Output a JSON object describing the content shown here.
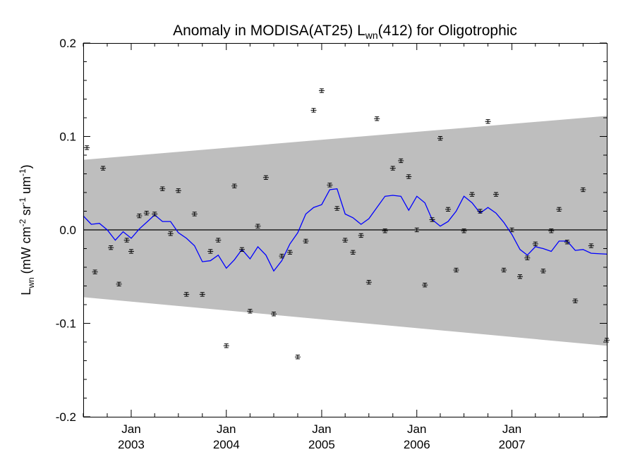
{
  "chart_data": {
    "type": "line",
    "title": {
      "prefix": "Anomaly in MODISA(AT25) L",
      "subscript": "wn",
      "suffix": "(412) for Oligotrophic"
    },
    "ylabel": {
      "main": "L",
      "sub": "wn",
      "units": [
        {
          "t": " (mW cm",
          "s": ""
        },
        {
          "t": "-2",
          "s": "sup"
        },
        {
          "t": " sr",
          "s": ""
        },
        {
          "t": "-1",
          "s": "sup"
        },
        {
          "t": " um",
          "s": ""
        },
        {
          "t": "-1",
          "s": "sup"
        },
        {
          "t": ")",
          "s": ""
        }
      ]
    },
    "xlim": [
      "2002-07-01",
      "2007-12-31"
    ],
    "ylim": [
      -0.2,
      0.2
    ],
    "x_ticks": [
      {
        "date": "2003-01-01",
        "month": "Jan",
        "year": "2003"
      },
      {
        "date": "2004-01-01",
        "month": "Jan",
        "year": "2004"
      },
      {
        "date": "2005-01-01",
        "month": "Jan",
        "year": "2005"
      },
      {
        "date": "2006-01-01",
        "month": "Jan",
        "year": "2006"
      },
      {
        "date": "2007-01-01",
        "month": "Jan",
        "year": "2007"
      }
    ],
    "y_ticks": [
      {
        "value": 0.2,
        "label": "0.2"
      },
      {
        "value": 0.1,
        "label": "0.1"
      },
      {
        "value": 0.0,
        "label": "0.0"
      },
      {
        "value": -0.1,
        "label": "-0.1"
      },
      {
        "value": -0.2,
        "label": "-0.2"
      }
    ],
    "grey_band": {
      "start": {
        "date": "2002-07-01",
        "upper": 0.075,
        "lower": -0.072
      },
      "end": {
        "date": "2007-12-31",
        "upper": 0.122,
        "lower": -0.124
      }
    },
    "zero_line": 0.0,
    "series": [
      {
        "kind": "points_with_error_bars",
        "color": "#000000",
        "error": 0.002,
        "points": [
          {
            "x": "2002-07-15",
            "y": 0.088
          },
          {
            "x": "2002-08-15",
            "y": -0.045
          },
          {
            "x": "2002-09-15",
            "y": 0.066
          },
          {
            "x": "2002-10-15",
            "y": -0.019
          },
          {
            "x": "2002-11-15",
            "y": -0.058
          },
          {
            "x": "2002-12-15",
            "y": -0.011
          },
          {
            "x": "2003-01-01",
            "y": -0.023
          },
          {
            "x": "2003-02-01",
            "y": 0.015
          },
          {
            "x": "2003-03-01",
            "y": 0.018
          },
          {
            "x": "2003-04-01",
            "y": 0.017
          },
          {
            "x": "2003-05-01",
            "y": 0.044
          },
          {
            "x": "2003-06-01",
            "y": -0.004
          },
          {
            "x": "2003-07-01",
            "y": 0.042
          },
          {
            "x": "2003-08-01",
            "y": -0.069
          },
          {
            "x": "2003-09-01",
            "y": 0.017
          },
          {
            "x": "2003-10-01",
            "y": -0.069
          },
          {
            "x": "2003-11-01",
            "y": -0.023
          },
          {
            "x": "2003-12-01",
            "y": -0.011
          },
          {
            "x": "2004-01-01",
            "y": -0.124
          },
          {
            "x": "2004-02-01",
            "y": 0.047
          },
          {
            "x": "2004-03-01",
            "y": -0.021
          },
          {
            "x": "2004-04-01",
            "y": -0.087
          },
          {
            "x": "2004-05-01",
            "y": 0.004
          },
          {
            "x": "2004-06-01",
            "y": 0.056
          },
          {
            "x": "2004-07-01",
            "y": -0.09
          },
          {
            "x": "2004-08-01",
            "y": -0.028
          },
          {
            "x": "2004-09-01",
            "y": -0.024
          },
          {
            "x": "2004-10-01",
            "y": -0.136
          },
          {
            "x": "2004-11-01",
            "y": -0.012
          },
          {
            "x": "2004-12-01",
            "y": 0.128
          },
          {
            "x": "2005-01-01",
            "y": 0.149
          },
          {
            "x": "2005-02-01",
            "y": 0.048
          },
          {
            "x": "2005-03-01",
            "y": 0.023
          },
          {
            "x": "2005-04-01",
            "y": -0.011
          },
          {
            "x": "2005-05-01",
            "y": -0.024
          },
          {
            "x": "2005-06-01",
            "y": -0.006
          },
          {
            "x": "2005-07-01",
            "y": -0.056
          },
          {
            "x": "2005-08-01",
            "y": 0.119
          },
          {
            "x": "2005-09-01",
            "y": -0.001
          },
          {
            "x": "2005-10-01",
            "y": 0.066
          },
          {
            "x": "2005-11-01",
            "y": 0.074
          },
          {
            "x": "2005-12-01",
            "y": 0.057
          },
          {
            "x": "2006-01-01",
            "y": 0.0
          },
          {
            "x": "2006-02-01",
            "y": -0.059
          },
          {
            "x": "2006-03-01",
            "y": 0.011
          },
          {
            "x": "2006-04-01",
            "y": 0.098
          },
          {
            "x": "2006-05-01",
            "y": 0.022
          },
          {
            "x": "2006-06-01",
            "y": -0.043
          },
          {
            "x": "2006-07-01",
            "y": -0.001
          },
          {
            "x": "2006-08-01",
            "y": 0.038
          },
          {
            "x": "2006-09-01",
            "y": 0.02
          },
          {
            "x": "2006-10-01",
            "y": 0.116
          },
          {
            "x": "2006-11-01",
            "y": 0.038
          },
          {
            "x": "2006-12-01",
            "y": -0.043
          },
          {
            "x": "2007-01-01",
            "y": 0.0
          },
          {
            "x": "2007-02-01",
            "y": -0.05
          },
          {
            "x": "2007-03-01",
            "y": -0.03
          },
          {
            "x": "2007-04-01",
            "y": -0.015
          },
          {
            "x": "2007-05-01",
            "y": -0.044
          },
          {
            "x": "2007-06-01",
            "y": -0.001
          },
          {
            "x": "2007-07-01",
            "y": 0.022
          },
          {
            "x": "2007-08-01",
            "y": -0.013
          },
          {
            "x": "2007-09-01",
            "y": -0.076
          },
          {
            "x": "2007-10-01",
            "y": 0.043
          },
          {
            "x": "2007-11-01",
            "y": -0.017
          },
          {
            "x": "2007-12-31",
            "y": -0.118
          }
        ]
      },
      {
        "kind": "line",
        "color": "#0000ff",
        "points": [
          {
            "x": "2002-07-01",
            "y": 0.015
          },
          {
            "x": "2002-08-01",
            "y": 0.006
          },
          {
            "x": "2002-09-01",
            "y": 0.007
          },
          {
            "x": "2002-10-01",
            "y": 0.0
          },
          {
            "x": "2002-11-01",
            "y": -0.011
          },
          {
            "x": "2002-12-01",
            "y": -0.002
          },
          {
            "x": "2003-01-01",
            "y": -0.009
          },
          {
            "x": "2003-02-01",
            "y": 0.001
          },
          {
            "x": "2003-03-01",
            "y": 0.008
          },
          {
            "x": "2003-04-01",
            "y": 0.016
          },
          {
            "x": "2003-05-01",
            "y": 0.009
          },
          {
            "x": "2003-06-01",
            "y": 0.009
          },
          {
            "x": "2003-07-01",
            "y": -0.003
          },
          {
            "x": "2003-08-01",
            "y": -0.009
          },
          {
            "x": "2003-09-01",
            "y": -0.017
          },
          {
            "x": "2003-10-01",
            "y": -0.034
          },
          {
            "x": "2003-11-01",
            "y": -0.033
          },
          {
            "x": "2003-12-01",
            "y": -0.027
          },
          {
            "x": "2004-01-01",
            "y": -0.041
          },
          {
            "x": "2004-02-01",
            "y": -0.032
          },
          {
            "x": "2004-03-01",
            "y": -0.021
          },
          {
            "x": "2004-04-01",
            "y": -0.031
          },
          {
            "x": "2004-05-01",
            "y": -0.018
          },
          {
            "x": "2004-06-01",
            "y": -0.027
          },
          {
            "x": "2004-07-01",
            "y": -0.044
          },
          {
            "x": "2004-08-01",
            "y": -0.033
          },
          {
            "x": "2004-09-01",
            "y": -0.015
          },
          {
            "x": "2004-10-01",
            "y": -0.003
          },
          {
            "x": "2004-11-01",
            "y": 0.017
          },
          {
            "x": "2004-12-01",
            "y": 0.024
          },
          {
            "x": "2005-01-01",
            "y": 0.027
          },
          {
            "x": "2005-02-01",
            "y": 0.043
          },
          {
            "x": "2005-03-01",
            "y": 0.044
          },
          {
            "x": "2005-04-01",
            "y": 0.017
          },
          {
            "x": "2005-05-01",
            "y": 0.013
          },
          {
            "x": "2005-06-01",
            "y": 0.006
          },
          {
            "x": "2005-07-01",
            "y": 0.012
          },
          {
            "x": "2005-08-01",
            "y": 0.024
          },
          {
            "x": "2005-09-01",
            "y": 0.036
          },
          {
            "x": "2005-10-01",
            "y": 0.037
          },
          {
            "x": "2005-11-01",
            "y": 0.036
          },
          {
            "x": "2005-12-01",
            "y": 0.021
          },
          {
            "x": "2006-01-01",
            "y": 0.036
          },
          {
            "x": "2006-02-01",
            "y": 0.029
          },
          {
            "x": "2006-03-01",
            "y": 0.011
          },
          {
            "x": "2006-04-01",
            "y": 0.004
          },
          {
            "x": "2006-05-01",
            "y": 0.009
          },
          {
            "x": "2006-06-01",
            "y": 0.02
          },
          {
            "x": "2006-07-01",
            "y": 0.036
          },
          {
            "x": "2006-08-01",
            "y": 0.029
          },
          {
            "x": "2006-09-01",
            "y": 0.018
          },
          {
            "x": "2006-10-01",
            "y": 0.024
          },
          {
            "x": "2006-11-01",
            "y": 0.018
          },
          {
            "x": "2006-12-01",
            "y": 0.008
          },
          {
            "x": "2007-01-01",
            "y": -0.005
          },
          {
            "x": "2007-02-01",
            "y": -0.021
          },
          {
            "x": "2007-03-01",
            "y": -0.027
          },
          {
            "x": "2007-04-01",
            "y": -0.018
          },
          {
            "x": "2007-05-01",
            "y": -0.02
          },
          {
            "x": "2007-06-01",
            "y": -0.023
          },
          {
            "x": "2007-07-01",
            "y": -0.012
          },
          {
            "x": "2007-08-01",
            "y": -0.012
          },
          {
            "x": "2007-09-01",
            "y": -0.022
          },
          {
            "x": "2007-10-01",
            "y": -0.021
          },
          {
            "x": "2007-11-01",
            "y": -0.025
          },
          {
            "x": "2007-12-31",
            "y": -0.026
          }
        ]
      }
    ],
    "colors": {
      "band": "#bebebe",
      "line": "#0000ff",
      "points": "#000000",
      "axis": "#000000"
    },
    "grid": false,
    "legend": "none"
  }
}
